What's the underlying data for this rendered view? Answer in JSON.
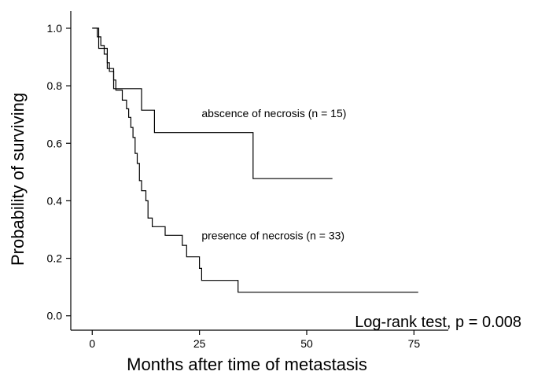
{
  "chart_data": {
    "type": "line",
    "title": "",
    "xlabel": "Months after time of metastasis",
    "ylabel": "Probability of surviving",
    "xlim": [
      -5,
      83
    ],
    "ylim": [
      -0.05,
      1.06
    ],
    "x_ticks": [
      0,
      25,
      50,
      75
    ],
    "x_tick_labels": [
      "0",
      "25",
      "50",
      "75"
    ],
    "y_ticks": [
      0.0,
      0.2,
      0.4,
      0.6,
      0.8,
      1.0
    ],
    "y_tick_labels": [
      "0.0",
      "0.2",
      "0.4",
      "0.6",
      "0.8",
      "1.0"
    ],
    "grid": false,
    "series": [
      {
        "name": "absence of necrosis (n = 15)",
        "step": true,
        "points": [
          [
            0,
            1.0
          ],
          [
            1.5,
            1.0
          ],
          [
            1.5,
            0.93
          ],
          [
            3.5,
            0.93
          ],
          [
            3.5,
            0.86
          ],
          [
            5,
            0.86
          ],
          [
            5,
            0.79
          ],
          [
            11.5,
            0.79
          ],
          [
            11.5,
            0.715
          ],
          [
            14.5,
            0.715
          ],
          [
            14.5,
            0.637
          ],
          [
            37.5,
            0.637
          ],
          [
            37.5,
            0.477
          ],
          [
            56,
            0.477
          ]
        ]
      },
      {
        "name": "presence of necrosis (n = 33)",
        "step": true,
        "points": [
          [
            0,
            1.0
          ],
          [
            1.2,
            1.0
          ],
          [
            1.2,
            0.97
          ],
          [
            2,
            0.97
          ],
          [
            2,
            0.94
          ],
          [
            2.8,
            0.94
          ],
          [
            2.8,
            0.91
          ],
          [
            3.5,
            0.91
          ],
          [
            3.5,
            0.88
          ],
          [
            4,
            0.88
          ],
          [
            4,
            0.85
          ],
          [
            5,
            0.85
          ],
          [
            5,
            0.82
          ],
          [
            5.5,
            0.82
          ],
          [
            5.5,
            0.785
          ],
          [
            7,
            0.785
          ],
          [
            7,
            0.75
          ],
          [
            8,
            0.75
          ],
          [
            8,
            0.72
          ],
          [
            8.5,
            0.72
          ],
          [
            8.5,
            0.69
          ],
          [
            9,
            0.69
          ],
          [
            9,
            0.655
          ],
          [
            9.5,
            0.655
          ],
          [
            9.5,
            0.62
          ],
          [
            10,
            0.62
          ],
          [
            10,
            0.565
          ],
          [
            10.5,
            0.565
          ],
          [
            10.5,
            0.53
          ],
          [
            11,
            0.53
          ],
          [
            11,
            0.47
          ],
          [
            11.5,
            0.47
          ],
          [
            11.5,
            0.435
          ],
          [
            12.5,
            0.435
          ],
          [
            12.5,
            0.4
          ],
          [
            13,
            0.4
          ],
          [
            13,
            0.34
          ],
          [
            14,
            0.34
          ],
          [
            14,
            0.31
          ],
          [
            17,
            0.31
          ],
          [
            17,
            0.28
          ],
          [
            21,
            0.28
          ],
          [
            21,
            0.245
          ],
          [
            22,
            0.245
          ],
          [
            22,
            0.205
          ],
          [
            25,
            0.205
          ],
          [
            25,
            0.165
          ],
          [
            25.5,
            0.165
          ],
          [
            25.5,
            0.123
          ],
          [
            34,
            0.123
          ],
          [
            34,
            0.082
          ],
          [
            76,
            0.082
          ]
        ]
      }
    ],
    "annotations": [
      {
        "text": "abscence of necrosis (n = 15)",
        "x": 25.5,
        "y": 0.705
      },
      {
        "text": "presence of necrosis (n = 33)",
        "x": 25.5,
        "y": 0.28
      }
    ],
    "stat_text": "Log-rank test, p = 0.008"
  }
}
